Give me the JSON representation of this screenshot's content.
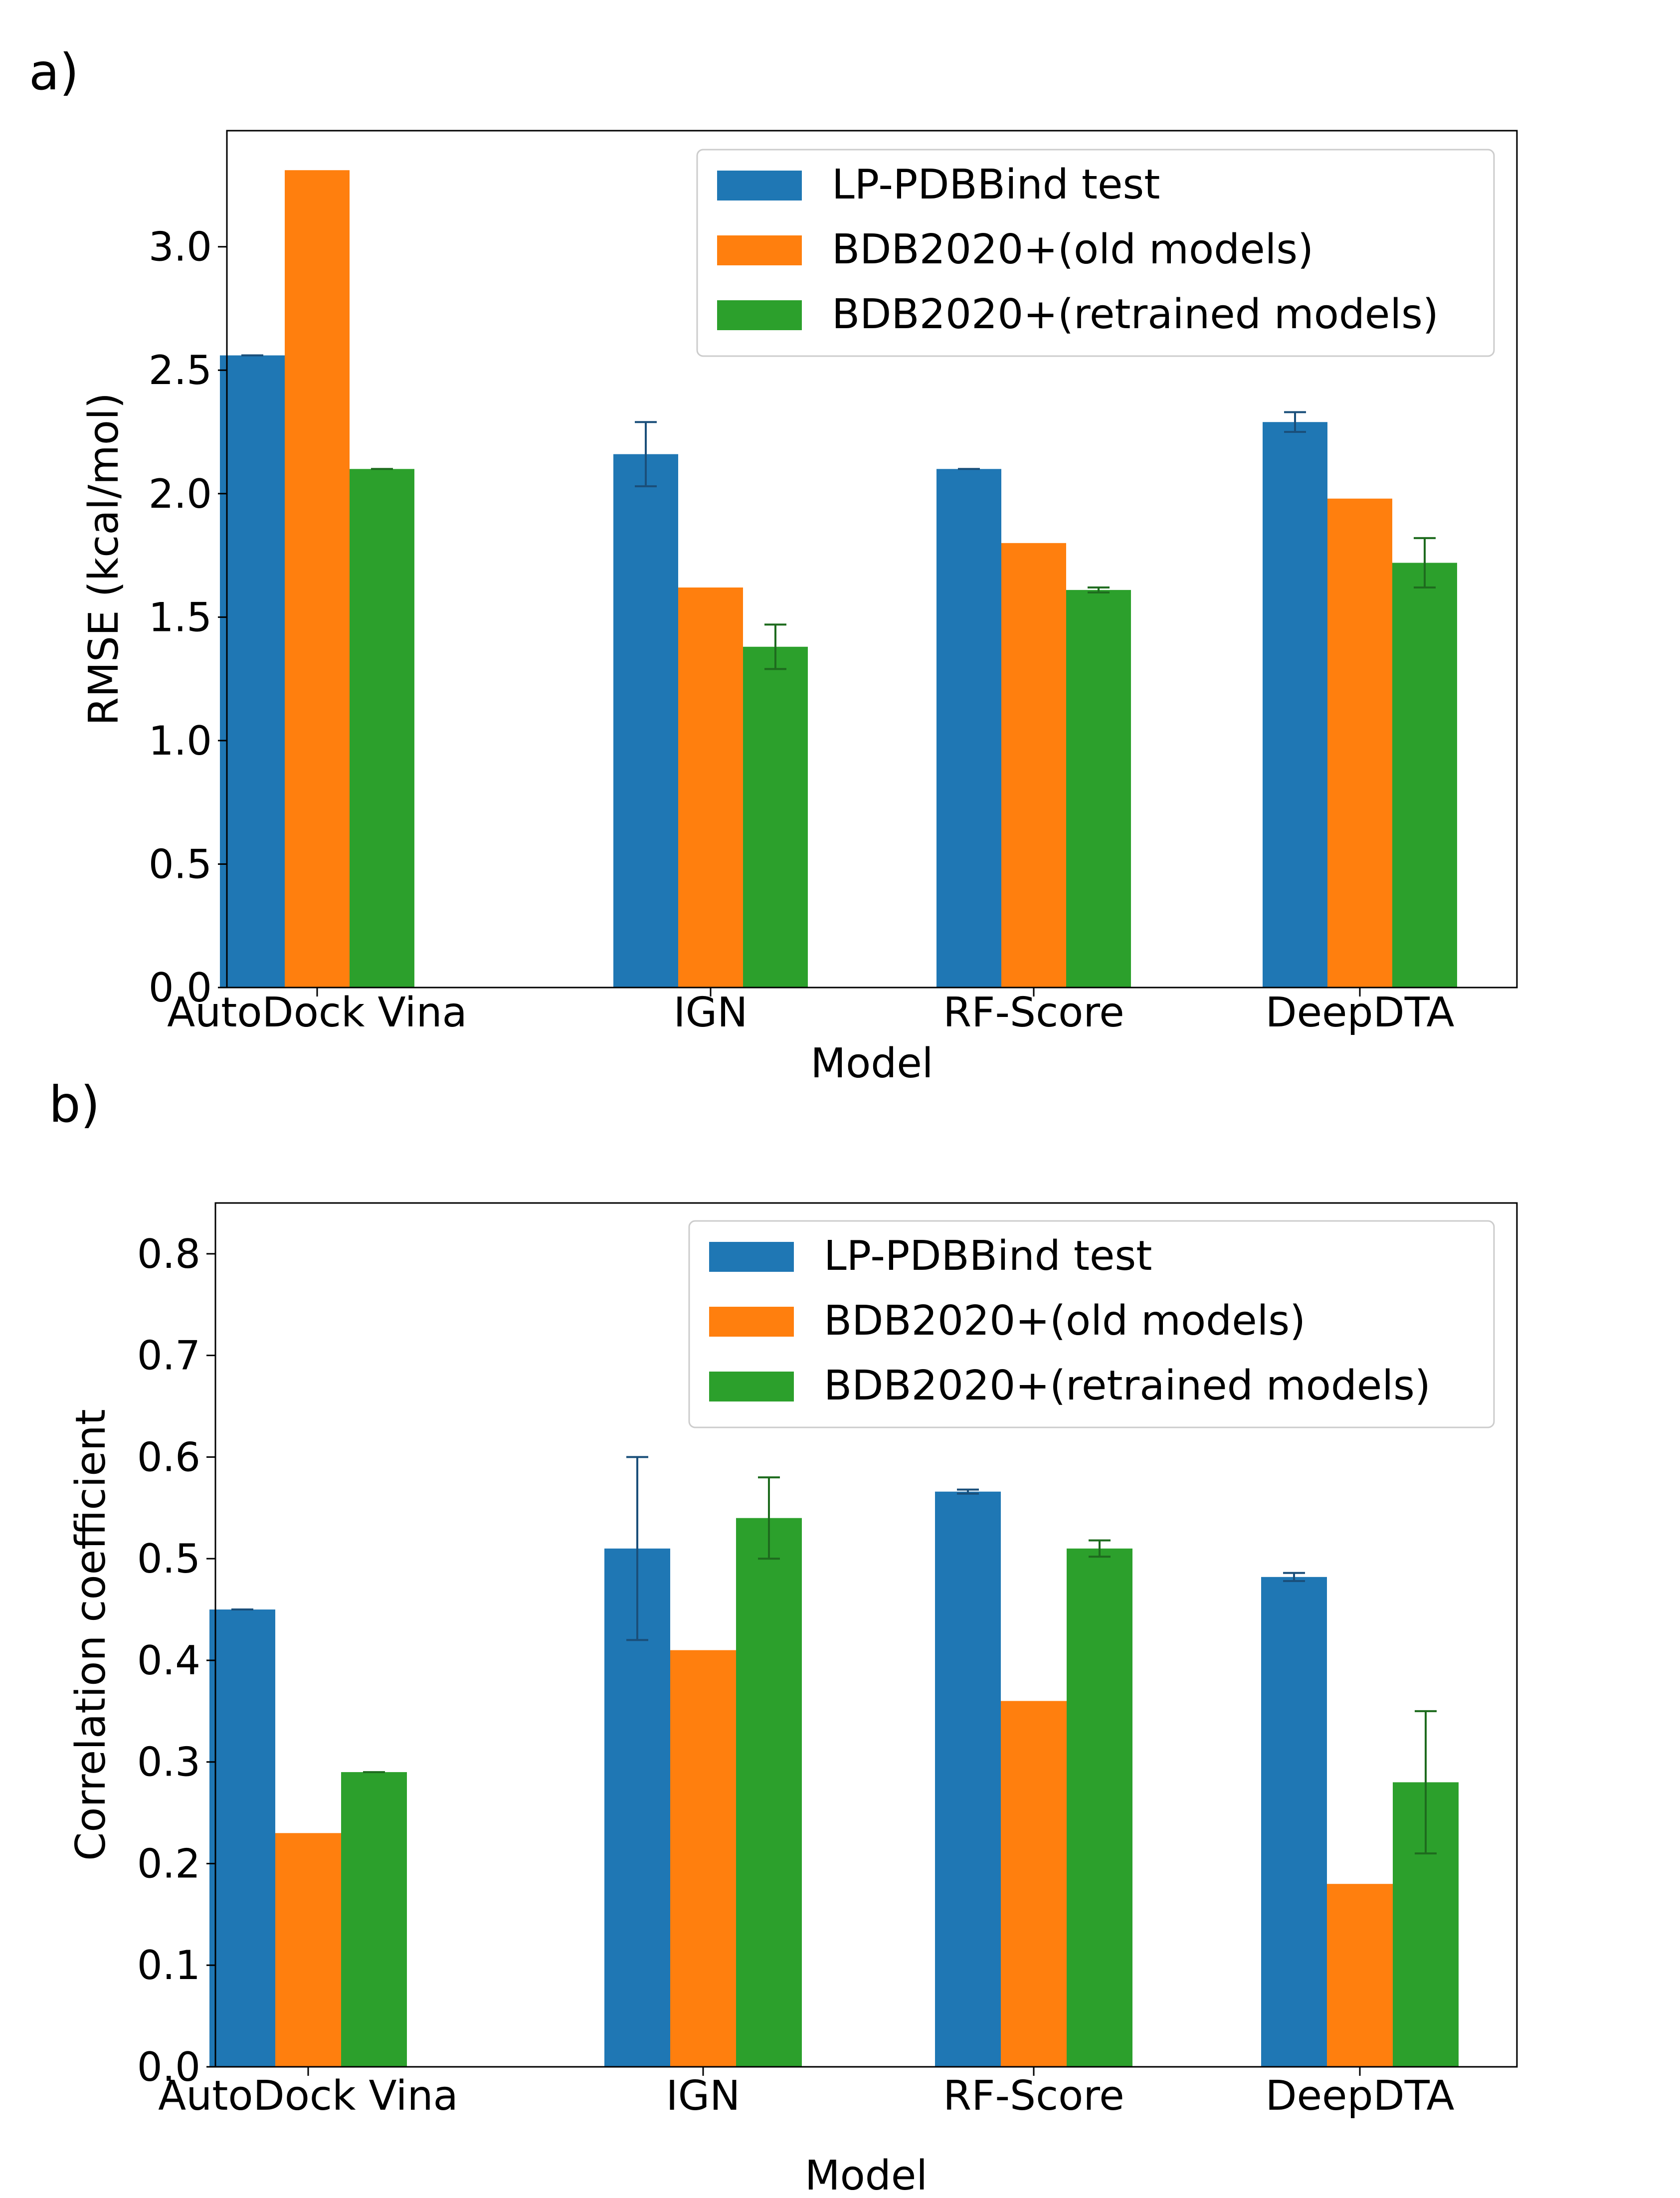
{
  "figure": {
    "panel_a_label": "a)",
    "panel_b_label": "b)"
  },
  "colors": {
    "blue": "#1f77b4",
    "orange": "#ff7f0e",
    "green": "#2ca02c",
    "err_blue": "#1a4f7a",
    "err_orange": "#b35a00",
    "err_green": "#1e6b1e"
  },
  "chart_data": [
    {
      "type": "bar",
      "title": "",
      "xlabel": "Model",
      "ylabel": "RMSE (kcal/mol)",
      "categories": [
        "AutoDock Vina",
        "IGN",
        "RF-Score",
        "DeepDTA"
      ],
      "ylim": [
        0,
        3.47
      ],
      "yticks": [
        0.0,
        0.5,
        1.0,
        1.5,
        2.0,
        2.5,
        3.0
      ],
      "ytick_labels": [
        "0.0",
        "0.5",
        "1.0",
        "1.5",
        "2.0",
        "2.5",
        "3.0"
      ],
      "legend_position": "top-right",
      "series": [
        {
          "name": "LP-PDBBind test",
          "color_key": "blue",
          "values": [
            2.56,
            2.16,
            2.1,
            2.29
          ],
          "errors": [
            0.0,
            0.13,
            0.0,
            0.04
          ]
        },
        {
          "name": "BDB2020+(old models)",
          "color_key": "orange",
          "values": [
            3.31,
            1.62,
            1.8,
            1.98
          ],
          "errors": [
            0,
            0,
            0,
            0
          ]
        },
        {
          "name": "BDB2020+(retrained models)",
          "color_key": "green",
          "values": [
            2.1,
            1.38,
            1.61,
            1.72
          ],
          "errors": [
            0.0,
            0.09,
            0.01,
            0.1
          ]
        }
      ]
    },
    {
      "type": "bar",
      "title": "",
      "xlabel": "Model",
      "ylabel": "Correlation coefficient",
      "categories": [
        "AutoDock Vina",
        "IGN",
        "RF-Score",
        "DeepDTA"
      ],
      "ylim": [
        0,
        0.85
      ],
      "yticks": [
        0.0,
        0.1,
        0.2,
        0.3,
        0.4,
        0.5,
        0.6,
        0.7,
        0.8
      ],
      "ytick_labels": [
        "0.0",
        "0.1",
        "0.2",
        "0.3",
        "0.4",
        "0.5",
        "0.6",
        "0.7",
        "0.8"
      ],
      "legend_position": "top-right",
      "series": [
        {
          "name": "LP-PDBBind test",
          "color_key": "blue",
          "values": [
            0.45,
            0.51,
            0.566,
            0.482
          ],
          "errors": [
            0.0,
            0.09,
            0.002,
            0.004
          ]
        },
        {
          "name": "BDB2020+(old models)",
          "color_key": "orange",
          "values": [
            0.23,
            0.41,
            0.36,
            0.18
          ],
          "errors": [
            0,
            0,
            0,
            0
          ]
        },
        {
          "name": "BDB2020+(retrained models)",
          "color_key": "green",
          "values": [
            0.29,
            0.54,
            0.51,
            0.28
          ],
          "errors": [
            0.0,
            0.04,
            0.008,
            0.07
          ]
        }
      ]
    }
  ]
}
